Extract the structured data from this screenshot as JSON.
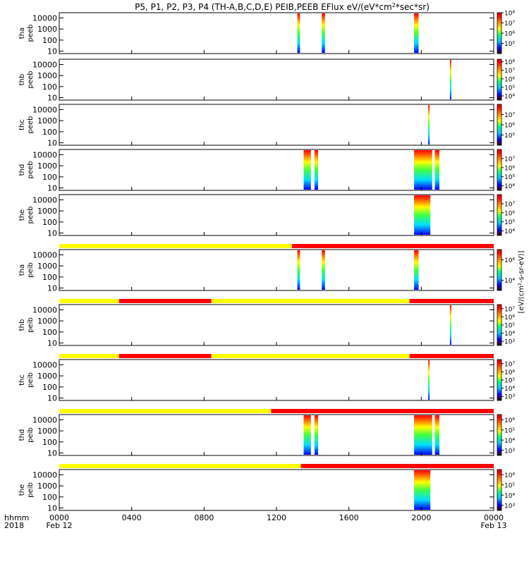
{
  "title": "P5, P1, P2, P3, P4 (TH-A,B,C,D,E) PEIB,PEEB EFlux eV/(eV*cm",
  "title_sup": "2",
  "title_tail": "*sec*sr)",
  "colorbar_unit_label": "[eV/(cm²-s-sr-eV)]",
  "x_axis": {
    "row1_label": "hhmm",
    "row2_label": "2018",
    "ticks": [
      "0000",
      "0400",
      "0800",
      "1200",
      "1600",
      "2000",
      "0000"
    ],
    "tick_hours": [
      0,
      4,
      8,
      12,
      16,
      20,
      24
    ],
    "dates": [
      {
        "hour": 0,
        "label": "Feb 12"
      },
      {
        "hour": 24,
        "label": "Feb 13"
      }
    ]
  },
  "chart_data": {
    "type": "heatmap",
    "x_range_hours": [
      0,
      24
    ],
    "y_scale": "log",
    "y_ticks": [
      "10",
      "100",
      "1000",
      "10000"
    ],
    "y_tick_values": [
      10,
      100,
      1000,
      10000
    ],
    "y_range": [
      6,
      30000
    ],
    "panels": [
      {
        "probe": "tha",
        "product": "peeb",
        "cbar_ticks": [
          "10⁵",
          "10⁶",
          "10⁷",
          "10⁸"
        ],
        "cbar_exp": [
          5,
          6,
          7,
          8
        ],
        "cbar_range": [
          4,
          8
        ],
        "bursts": [
          {
            "t0": 13.15,
            "t1": 13.3
          },
          {
            "t0": 14.5,
            "t1": 14.68
          },
          {
            "t0": 19.6,
            "t1": 19.85
          }
        ]
      },
      {
        "probe": "thb",
        "product": "peeb",
        "cbar_ticks": [
          "10⁴",
          "10⁵",
          "10⁶",
          "10⁷",
          "10⁸"
        ],
        "cbar_exp": [
          4,
          5,
          6,
          7,
          8
        ],
        "cbar_range": [
          3.5,
          8.3
        ],
        "bursts": [
          {
            "t0": 21.58,
            "t1": 21.65
          }
        ]
      },
      {
        "probe": "thc",
        "product": "peeb",
        "cbar_ticks": [
          "10⁵",
          "10⁶",
          "10⁷"
        ],
        "cbar_exp": [
          5,
          6,
          7
        ],
        "cbar_range": [
          4,
          8
        ],
        "bursts": [
          {
            "t0": 20.38,
            "t1": 20.45
          }
        ]
      },
      {
        "probe": "thd",
        "product": "peeb",
        "cbar_ticks": [
          "10⁴",
          "10⁵",
          "10⁶",
          "10⁷"
        ],
        "cbar_exp": [
          4,
          5,
          6,
          7
        ],
        "cbar_range": [
          3.5,
          8
        ],
        "bursts": [
          {
            "t0": 13.5,
            "t1": 13.9
          },
          {
            "t0": 14.1,
            "t1": 14.3
          },
          {
            "t0": 19.6,
            "t1": 20.6
          },
          {
            "t0": 20.75,
            "t1": 21.0
          }
        ]
      },
      {
        "probe": "the",
        "product": "peeb",
        "cbar_ticks": [
          "10⁴",
          "10⁵",
          "10⁶",
          "10⁷"
        ],
        "cbar_exp": [
          4,
          5,
          6,
          7
        ],
        "cbar_range": [
          3.5,
          8
        ],
        "bursts": [
          {
            "t0": 19.6,
            "t1": 20.5
          }
        ]
      },
      {
        "probe": "tha",
        "product": "peib",
        "cbar_ticks": [
          "10⁴",
          "10⁶"
        ],
        "cbar_exp": [
          4,
          6
        ],
        "cbar_range": [
          3,
          7
        ],
        "bursts": [
          {
            "t0": 13.15,
            "t1": 13.3
          },
          {
            "t0": 14.5,
            "t1": 14.68
          },
          {
            "t0": 19.6,
            "t1": 19.85
          }
        ]
      },
      {
        "probe": "thb",
        "product": "peib",
        "cbar_ticks": [
          "10³",
          "10⁴",
          "10⁵",
          "10⁶",
          "10⁷"
        ],
        "cbar_exp": [
          3,
          4,
          5,
          6,
          7
        ],
        "cbar_range": [
          2.5,
          7.5
        ],
        "bursts": [
          {
            "t0": 21.58,
            "t1": 21.65
          }
        ]
      },
      {
        "probe": "thc",
        "product": "peib",
        "cbar_ticks": [
          "10³",
          "10⁴",
          "10⁵",
          "10⁶",
          "10⁷"
        ],
        "cbar_exp": [
          3,
          4,
          5,
          6,
          7
        ],
        "cbar_range": [
          2.5,
          7.5
        ],
        "bursts": [
          {
            "t0": 20.38,
            "t1": 20.45
          }
        ]
      },
      {
        "probe": "thd",
        "product": "peib",
        "cbar_ticks": [
          "10³",
          "10⁴",
          "10⁵",
          "10⁶"
        ],
        "cbar_exp": [
          3,
          4,
          5,
          6
        ],
        "cbar_range": [
          2.5,
          6.5
        ],
        "bursts": [
          {
            "t0": 13.5,
            "t1": 13.9
          },
          {
            "t0": 14.1,
            "t1": 14.3
          },
          {
            "t0": 19.6,
            "t1": 20.6
          },
          {
            "t0": 20.75,
            "t1": 21.0
          }
        ]
      },
      {
        "probe": "the",
        "product": "peib",
        "cbar_ticks": [
          "10³",
          "10⁴",
          "10⁵",
          "10⁶"
        ],
        "cbar_exp": [
          3,
          4,
          5,
          6
        ],
        "cbar_range": [
          2.5,
          6.5
        ],
        "bursts": [
          {
            "t0": 19.6,
            "t1": 20.5
          }
        ]
      }
    ],
    "mode_bars": [
      {
        "above_panel": 5,
        "segments": [
          {
            "t0": 0,
            "t1": 12.85,
            "color": "#ffff00"
          },
          {
            "t0": 12.85,
            "t1": 24,
            "color": "#ff0000"
          }
        ]
      },
      {
        "above_panel": 6,
        "segments": [
          {
            "t0": 0,
            "t1": 3.3,
            "color": "#ffff00"
          },
          {
            "t0": 3.3,
            "t1": 8.4,
            "color": "#ff0000"
          },
          {
            "t0": 8.4,
            "t1": 19.35,
            "color": "#ffff00"
          },
          {
            "t0": 19.35,
            "t1": 24,
            "color": "#ff0000"
          }
        ]
      },
      {
        "above_panel": 7,
        "segments": [
          {
            "t0": 0,
            "t1": 3.3,
            "color": "#ffff00"
          },
          {
            "t0": 3.3,
            "t1": 8.4,
            "color": "#ff0000"
          },
          {
            "t0": 8.4,
            "t1": 19.35,
            "color": "#ffff00"
          },
          {
            "t0": 19.35,
            "t1": 24,
            "color": "#ff0000"
          }
        ]
      },
      {
        "above_panel": 8,
        "segments": [
          {
            "t0": 0,
            "t1": 11.7,
            "color": "#ffff00"
          },
          {
            "t0": 11.7,
            "t1": 24,
            "color": "#ff0000"
          }
        ]
      },
      {
        "above_panel": 9,
        "segments": [
          {
            "t0": 0,
            "t1": 13.35,
            "color": "#ffff00"
          },
          {
            "t0": 13.35,
            "t1": 24,
            "color": "#ff0000"
          }
        ]
      }
    ]
  }
}
